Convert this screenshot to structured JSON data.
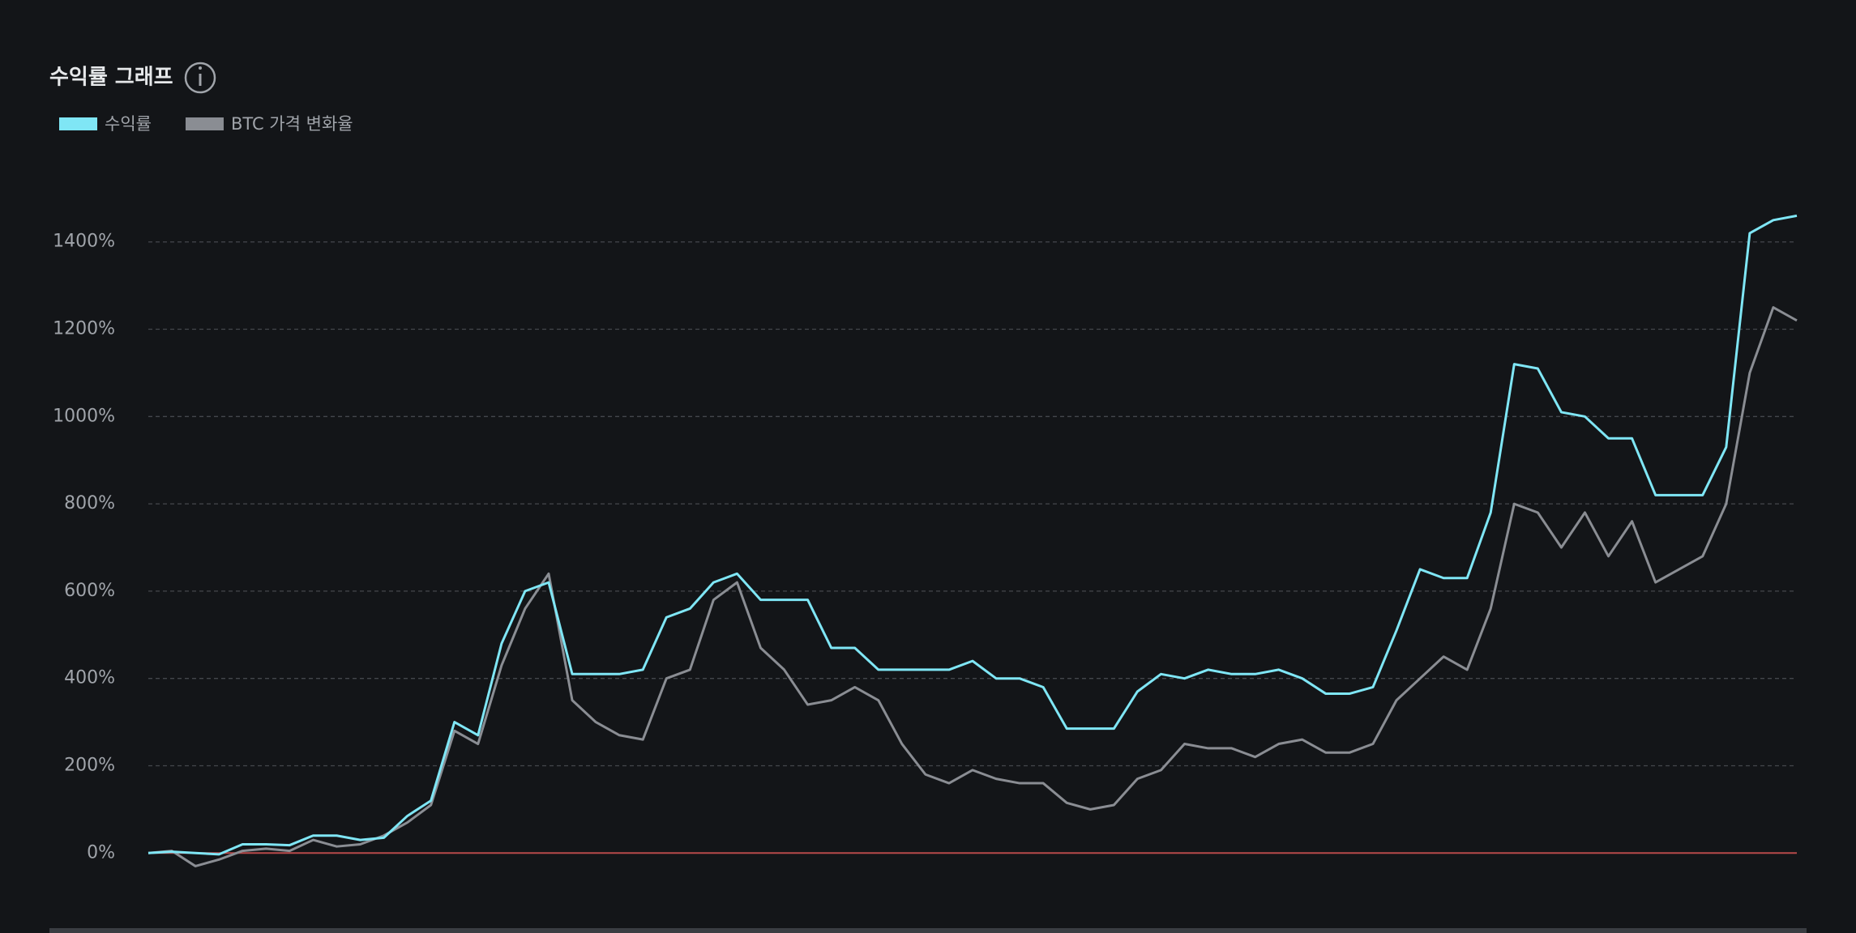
{
  "chart_data": {
    "type": "line",
    "title": "수익률 그래프",
    "series": [
      {
        "name": "수익률",
        "color": "#7fe6f5",
        "values": [
          0,
          3,
          0,
          -3,
          20,
          20,
          18,
          40,
          40,
          30,
          35,
          85,
          120,
          300,
          270,
          480,
          600,
          620,
          410,
          410,
          410,
          420,
          540,
          560,
          620,
          640,
          580,
          580,
          580,
          470,
          470,
          420,
          420,
          420,
          420,
          440,
          400,
          400,
          380,
          285,
          285,
          285,
          370,
          410,
          400,
          420,
          410,
          410,
          420,
          400,
          365,
          365,
          380,
          510,
          650,
          630,
          630,
          780,
          1120,
          1110,
          1010,
          1000,
          950,
          950,
          820,
          820,
          820,
          930,
          1420,
          1450,
          1460
        ]
      },
      {
        "name": "BTC 가격 변화율",
        "color": "#8a8d93",
        "values": [
          0,
          5,
          -30,
          -15,
          5,
          10,
          5,
          30,
          15,
          20,
          40,
          70,
          110,
          280,
          250,
          430,
          560,
          640,
          350,
          300,
          270,
          260,
          400,
          420,
          580,
          620,
          470,
          420,
          340,
          350,
          380,
          350,
          250,
          180,
          160,
          190,
          170,
          160,
          160,
          115,
          100,
          110,
          170,
          190,
          250,
          240,
          240,
          220,
          250,
          260,
          230,
          230,
          250,
          350,
          400,
          450,
          420,
          560,
          800,
          780,
          700,
          780,
          680,
          760,
          620,
          650,
          680,
          800,
          1100,
          1250,
          1220
        ]
      }
    ],
    "ylim": [
      -70,
      1650
    ],
    "yticks": [
      {
        "value": 0,
        "label": "0%"
      },
      {
        "value": 200,
        "label": "200%"
      },
      {
        "value": 400,
        "label": "400%"
      },
      {
        "value": 600,
        "label": "600%"
      },
      {
        "value": 800,
        "label": "800%"
      },
      {
        "value": 1000,
        "label": "1000%"
      },
      {
        "value": 1200,
        "label": "1200%"
      },
      {
        "value": 1400,
        "label": "1400%"
      }
    ],
    "grid": true,
    "legend": "top-left"
  }
}
